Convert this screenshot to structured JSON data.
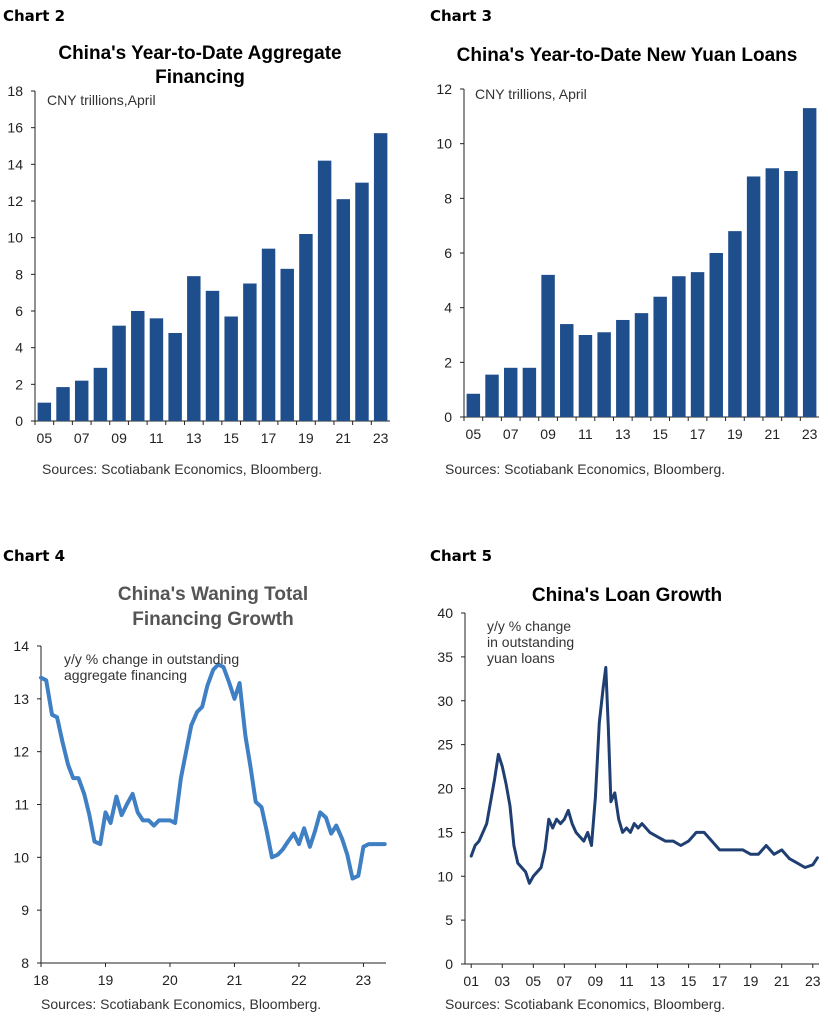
{
  "chart_data": [
    {
      "id": "chart2",
      "type": "bar",
      "label": "Chart 2",
      "title": [
        "China's Year-to-Date Aggregate",
        "Financing"
      ],
      "annotation": [
        "CNY trillions,April"
      ],
      "source": "Sources: Scotiabank Economics, Bloomberg.",
      "color": "#1f4e8c",
      "categories": [
        "05",
        "06",
        "07",
        "08",
        "09",
        "10",
        "11",
        "12",
        "13",
        "14",
        "15",
        "16",
        "17",
        "18",
        "19",
        "20",
        "21",
        "22",
        "23"
      ],
      "xtick_labels": [
        "05",
        "",
        "07",
        "",
        "09",
        "",
        "11",
        "",
        "13",
        "",
        "15",
        "",
        "17",
        "",
        "19",
        "",
        "21",
        "",
        "23"
      ],
      "values": [
        1.0,
        1.85,
        2.2,
        2.9,
        5.2,
        6.0,
        5.6,
        4.8,
        7.9,
        7.1,
        5.7,
        7.5,
        9.4,
        8.3,
        10.2,
        14.2,
        12.1,
        13.0,
        15.7
      ],
      "ylim": [
        0,
        18
      ],
      "yticks": [
        0,
        2,
        4,
        6,
        8,
        10,
        12,
        14,
        16,
        18
      ]
    },
    {
      "id": "chart3",
      "type": "bar",
      "label": "Chart 3",
      "title": [
        "China's Year-to-Date New Yuan Loans"
      ],
      "annotation": [
        "CNY trillions, April"
      ],
      "source": "Sources: Scotiabank Economics, Bloomberg.",
      "color": "#1f4e8c",
      "categories": [
        "05",
        "06",
        "07",
        "08",
        "09",
        "10",
        "11",
        "12",
        "13",
        "14",
        "15",
        "16",
        "17",
        "18",
        "19",
        "20",
        "21",
        "22",
        "23"
      ],
      "xtick_labels": [
        "05",
        "",
        "07",
        "",
        "09",
        "",
        "11",
        "",
        "13",
        "",
        "15",
        "",
        "17",
        "",
        "19",
        "",
        "21",
        "",
        "23"
      ],
      "values": [
        0.85,
        1.55,
        1.8,
        1.8,
        5.2,
        3.4,
        3.0,
        3.1,
        3.55,
        3.8,
        4.4,
        5.15,
        5.3,
        6.0,
        6.8,
        8.8,
        9.1,
        9.0,
        11.3
      ],
      "ylim": [
        0,
        12
      ],
      "yticks": [
        0,
        2,
        4,
        6,
        8,
        10,
        12
      ]
    },
    {
      "id": "chart4",
      "type": "line",
      "label": "Chart 4",
      "title": [
        "China's Waning Total",
        "Financing Growth"
      ],
      "annotation": [
        "y/y % change in outstanding",
        "aggregate financing"
      ],
      "source": "Sources: Scotiabank Economics, Bloomberg.",
      "color": "#3f7fc4",
      "x": [
        2018.0,
        2018.08,
        2018.17,
        2018.25,
        2018.33,
        2018.42,
        2018.5,
        2018.58,
        2018.67,
        2018.75,
        2018.83,
        2018.92,
        2019.0,
        2019.08,
        2019.17,
        2019.25,
        2019.33,
        2019.42,
        2019.5,
        2019.58,
        2019.67,
        2019.75,
        2019.83,
        2019.92,
        2020.0,
        2020.08,
        2020.17,
        2020.25,
        2020.33,
        2020.42,
        2020.5,
        2020.58,
        2020.67,
        2020.75,
        2020.83,
        2020.92,
        2021.0,
        2021.08,
        2021.17,
        2021.25,
        2021.33,
        2021.42,
        2021.5,
        2021.58,
        2021.67,
        2021.75,
        2021.83,
        2021.92,
        2022.0,
        2022.08,
        2022.17,
        2022.25,
        2022.33,
        2022.42,
        2022.5,
        2022.58,
        2022.67,
        2022.75,
        2022.83,
        2022.92,
        2023.0,
        2023.08,
        2023.17,
        2023.25,
        2023.33
      ],
      "values": [
        13.4,
        13.35,
        12.7,
        12.65,
        12.2,
        11.75,
        11.5,
        11.5,
        11.2,
        10.8,
        10.3,
        10.25,
        10.85,
        10.65,
        11.15,
        10.8,
        11.0,
        11.2,
        10.85,
        10.7,
        10.7,
        10.6,
        10.7,
        10.7,
        10.7,
        10.65,
        11.5,
        12.0,
        12.5,
        12.75,
        12.85,
        13.25,
        13.55,
        13.65,
        13.6,
        13.3,
        13.0,
        13.3,
        12.3,
        11.7,
        11.05,
        10.95,
        10.5,
        10.0,
        10.05,
        10.15,
        10.3,
        10.45,
        10.25,
        10.55,
        10.2,
        10.5,
        10.85,
        10.75,
        10.45,
        10.6,
        10.35,
        10.05,
        9.6,
        9.65,
        10.2,
        10.25,
        10.25,
        10.25,
        10.25
      ],
      "xlim": [
        2018,
        2023.35
      ],
      "xticks": [
        2018,
        2019,
        2020,
        2021,
        2022,
        2023
      ],
      "xtick_labels": [
        "18",
        "19",
        "20",
        "21",
        "22",
        "23"
      ],
      "ylim": [
        8,
        14
      ],
      "yticks": [
        8,
        9,
        10,
        11,
        12,
        13,
        14
      ]
    },
    {
      "id": "chart5",
      "type": "line",
      "label": "Chart 5",
      "title": [
        "China's Loan Growth"
      ],
      "annotation": [
        "y/y % change",
        "in outstanding",
        "yuan loans"
      ],
      "source": "Sources: Scotiabank Economics, Bloomberg.",
      "color": "#1f3f73",
      "x": [
        2001.0,
        2001.25,
        2001.5,
        2001.75,
        2002.0,
        2002.25,
        2002.5,
        2002.75,
        2003.0,
        2003.25,
        2003.5,
        2003.75,
        2004.0,
        2004.25,
        2004.5,
        2004.75,
        2005.0,
        2005.25,
        2005.5,
        2005.75,
        2006.0,
        2006.25,
        2006.5,
        2006.75,
        2007.0,
        2007.25,
        2007.5,
        2007.75,
        2008.0,
        2008.25,
        2008.5,
        2008.75,
        2009.0,
        2009.25,
        2009.5,
        2009.67,
        2009.83,
        2010.0,
        2010.25,
        2010.5,
        2010.75,
        2011.0,
        2011.25,
        2011.5,
        2011.75,
        2012.0,
        2012.5,
        2013.0,
        2013.5,
        2014.0,
        2014.5,
        2015.0,
        2015.5,
        2016.0,
        2016.5,
        2017.0,
        2017.5,
        2018.0,
        2018.5,
        2019.0,
        2019.5,
        2020.0,
        2020.5,
        2021.0,
        2021.5,
        2022.0,
        2022.5,
        2023.0,
        2023.3
      ],
      "values": [
        12.3,
        13.5,
        14.0,
        15.0,
        16.0,
        18.5,
        21.0,
        23.9,
        22.5,
        20.5,
        18.0,
        13.5,
        11.5,
        11.0,
        10.5,
        9.2,
        10.0,
        10.5,
        11.0,
        13.0,
        16.5,
        15.5,
        16.5,
        16.0,
        16.5,
        17.5,
        16.0,
        15.0,
        14.5,
        14.0,
        15.0,
        13.5,
        19.0,
        27.5,
        31.5,
        33.8,
        27.0,
        18.5,
        19.5,
        16.5,
        15.0,
        15.5,
        15.0,
        16.0,
        15.5,
        16.0,
        15.0,
        14.5,
        14.0,
        14.0,
        13.5,
        14.0,
        15.0,
        15.0,
        14.0,
        13.0,
        13.0,
        13.0,
        13.0,
        12.5,
        12.5,
        13.5,
        12.5,
        13.0,
        12.0,
        11.5,
        11.0,
        11.3,
        12.1
      ],
      "xlim": [
        2000.6,
        2023.4
      ],
      "xticks": [
        2001,
        2003,
        2005,
        2007,
        2009,
        2011,
        2013,
        2015,
        2017,
        2019,
        2021,
        2023
      ],
      "xtick_labels": [
        "01",
        "03",
        "05",
        "07",
        "09",
        "11",
        "13",
        "15",
        "17",
        "19",
        "21",
        "23"
      ],
      "ylim": [
        0,
        40
      ],
      "yticks": [
        0,
        5,
        10,
        15,
        20,
        25,
        30,
        35,
        40
      ]
    }
  ]
}
